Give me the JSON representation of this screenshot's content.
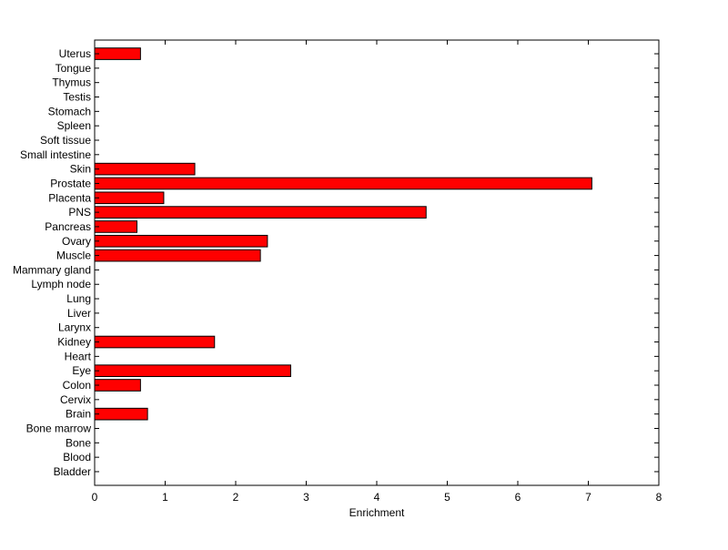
{
  "chart_data": {
    "type": "bar",
    "orientation": "horizontal",
    "title": "",
    "xlabel": "Enrichment",
    "ylabel": "",
    "xlim": [
      0,
      8
    ],
    "xticks": [
      "0",
      "1",
      "2",
      "3",
      "4",
      "5",
      "6",
      "7",
      "8"
    ],
    "grid": false,
    "legend": "none",
    "bar_color": "#ff0000",
    "bar_edge_color": "#000000",
    "categories": [
      "Uterus",
      "Tongue",
      "Thymus",
      "Testis",
      "Stomach",
      "Spleen",
      "Soft tissue",
      "Small intestine",
      "Skin",
      "Prostate",
      "Placenta",
      "PNS",
      "Pancreas",
      "Ovary",
      "Muscle",
      "Mammary gland",
      "Lymph node",
      "Lung",
      "Liver",
      "Larynx",
      "Kidney",
      "Heart",
      "Eye",
      "Colon",
      "Cervix",
      "Brain",
      "Bone marrow",
      "Bone",
      "Blood",
      "Bladder"
    ],
    "values": [
      0.65,
      0,
      0,
      0,
      0,
      0,
      0,
      0,
      1.42,
      7.05,
      0.98,
      4.7,
      0.6,
      2.45,
      2.35,
      0,
      0,
      0,
      0,
      0,
      1.7,
      0,
      2.78,
      0.65,
      0,
      0.75,
      0,
      0,
      0,
      0
    ]
  }
}
